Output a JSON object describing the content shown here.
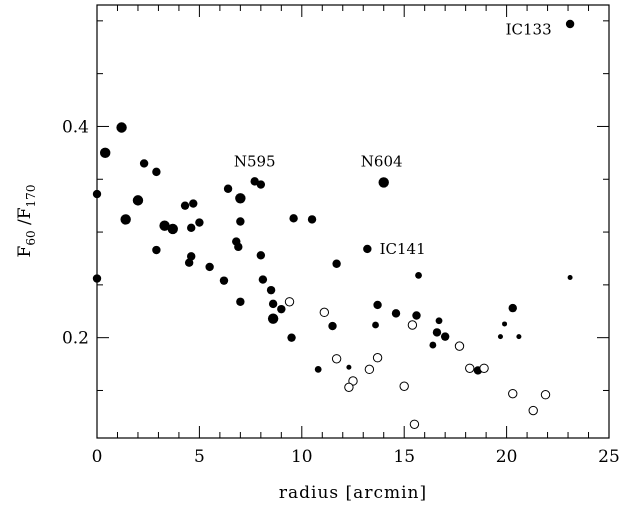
{
  "chart_data": {
    "type": "scatter",
    "xlabel": "radius [arcmin]",
    "ylabel": {
      "base1": "F",
      "sub1": "60",
      "sep": " /",
      "base2": "F",
      "sub2": "170"
    },
    "xlim": [
      0,
      25
    ],
    "ylim": [
      0.105,
      0.515
    ],
    "x_ticks": [
      {
        "value": 0,
        "label": "0"
      },
      {
        "value": 5,
        "label": "5"
      },
      {
        "value": 10,
        "label": "10"
      },
      {
        "value": 15,
        "label": "15"
      },
      {
        "value": 20,
        "label": "20"
      },
      {
        "value": 25,
        "label": "25"
      }
    ],
    "y_ticks": [
      {
        "value": 0.2,
        "label": "0.2"
      },
      {
        "value": 0.4,
        "label": "0.4"
      }
    ],
    "x_minor_step": 1,
    "y_minor_step": 0.05,
    "grid": false,
    "legend": "none",
    "series": [
      {
        "marker": "filled",
        "points": [
          {
            "x": 23.1,
            "y": 0.497,
            "s": "m"
          },
          {
            "x": 1.2,
            "y": 0.399,
            "s": "l"
          },
          {
            "x": 0.4,
            "y": 0.375,
            "s": "l"
          },
          {
            "x": 0.0,
            "y": 0.336,
            "s": "m"
          },
          {
            "x": 0.0,
            "y": 0.256,
            "s": "m"
          },
          {
            "x": 2.3,
            "y": 0.365,
            "s": "m"
          },
          {
            "x": 2.9,
            "y": 0.357,
            "s": "m"
          },
          {
            "x": 2.0,
            "y": 0.33,
            "s": "l"
          },
          {
            "x": 1.4,
            "y": 0.312,
            "s": "l"
          },
          {
            "x": 3.3,
            "y": 0.306,
            "s": "l"
          },
          {
            "x": 3.7,
            "y": 0.303,
            "s": "l"
          },
          {
            "x": 2.9,
            "y": 0.283,
            "s": "m"
          },
          {
            "x": 4.3,
            "y": 0.325,
            "s": "m"
          },
          {
            "x": 4.7,
            "y": 0.327,
            "s": "m"
          },
          {
            "x": 5.0,
            "y": 0.309,
            "s": "m"
          },
          {
            "x": 4.6,
            "y": 0.304,
            "s": "m"
          },
          {
            "x": 4.6,
            "y": 0.277,
            "s": "m"
          },
          {
            "x": 4.5,
            "y": 0.271,
            "s": "m"
          },
          {
            "x": 5.5,
            "y": 0.267,
            "s": "m"
          },
          {
            "x": 6.2,
            "y": 0.254,
            "s": "m"
          },
          {
            "x": 6.4,
            "y": 0.341,
            "s": "m"
          },
          {
            "x": 7.0,
            "y": 0.332,
            "s": "l"
          },
          {
            "x": 7.0,
            "y": 0.31,
            "s": "m"
          },
          {
            "x": 6.8,
            "y": 0.291,
            "s": "m"
          },
          {
            "x": 6.9,
            "y": 0.286,
            "s": "m"
          },
          {
            "x": 7.7,
            "y": 0.348,
            "s": "m"
          },
          {
            "x": 8.0,
            "y": 0.345,
            "s": "m"
          },
          {
            "x": 7.0,
            "y": 0.234,
            "s": "m"
          },
          {
            "x": 8.0,
            "y": 0.278,
            "s": "m"
          },
          {
            "x": 8.1,
            "y": 0.255,
            "s": "m"
          },
          {
            "x": 8.5,
            "y": 0.245,
            "s": "m"
          },
          {
            "x": 8.6,
            "y": 0.232,
            "s": "m"
          },
          {
            "x": 8.6,
            "y": 0.218,
            "s": "l"
          },
          {
            "x": 9.0,
            "y": 0.227,
            "s": "m"
          },
          {
            "x": 9.6,
            "y": 0.313,
            "s": "m"
          },
          {
            "x": 10.5,
            "y": 0.312,
            "s": "m"
          },
          {
            "x": 9.5,
            "y": 0.2,
            "s": "m"
          },
          {
            "x": 11.7,
            "y": 0.27,
            "s": "m"
          },
          {
            "x": 11.5,
            "y": 0.211,
            "s": "m"
          },
          {
            "x": 10.8,
            "y": 0.17,
            "s": "s"
          },
          {
            "x": 12.3,
            "y": 0.172,
            "s": "xs"
          },
          {
            "x": 14.0,
            "y": 0.347,
            "s": "l"
          },
          {
            "x": 13.2,
            "y": 0.284,
            "s": "m"
          },
          {
            "x": 13.7,
            "y": 0.231,
            "s": "m"
          },
          {
            "x": 13.6,
            "y": 0.212,
            "s": "s"
          },
          {
            "x": 14.6,
            "y": 0.223,
            "s": "m"
          },
          {
            "x": 15.6,
            "y": 0.221,
            "s": "m"
          },
          {
            "x": 15.7,
            "y": 0.259,
            "s": "s"
          },
          {
            "x": 16.7,
            "y": 0.216,
            "s": "s"
          },
          {
            "x": 16.6,
            "y": 0.205,
            "s": "m"
          },
          {
            "x": 17.0,
            "y": 0.201,
            "s": "m"
          },
          {
            "x": 16.4,
            "y": 0.193,
            "s": "s"
          },
          {
            "x": 18.6,
            "y": 0.169,
            "s": "m"
          },
          {
            "x": 20.3,
            "y": 0.228,
            "s": "m"
          },
          {
            "x": 19.9,
            "y": 0.213,
            "s": "xs"
          },
          {
            "x": 19.7,
            "y": 0.201,
            "s": "xs"
          },
          {
            "x": 20.6,
            "y": 0.201,
            "s": "xs"
          },
          {
            "x": 23.1,
            "y": 0.257,
            "s": "xs"
          }
        ]
      },
      {
        "marker": "open",
        "points": [
          {
            "x": 9.4,
            "y": 0.234
          },
          {
            "x": 11.1,
            "y": 0.224
          },
          {
            "x": 11.7,
            "y": 0.18
          },
          {
            "x": 13.3,
            "y": 0.17
          },
          {
            "x": 13.7,
            "y": 0.181
          },
          {
            "x": 12.5,
            "y": 0.159
          },
          {
            "x": 12.3,
            "y": 0.153
          },
          {
            "x": 15.4,
            "y": 0.212
          },
          {
            "x": 15.0,
            "y": 0.154
          },
          {
            "x": 15.5,
            "y": 0.118
          },
          {
            "x": 17.7,
            "y": 0.192
          },
          {
            "x": 18.2,
            "y": 0.171
          },
          {
            "x": 18.9,
            "y": 0.171
          },
          {
            "x": 20.3,
            "y": 0.147
          },
          {
            "x": 21.3,
            "y": 0.131
          },
          {
            "x": 21.9,
            "y": 0.146
          }
        ]
      }
    ],
    "annotations": [
      {
        "text": "IC133",
        "x": 22.2,
        "y": 0.487,
        "anchor": "end"
      },
      {
        "text": "N595",
        "x": 7.7,
        "y": 0.362,
        "anchor": "middle"
      },
      {
        "text": "N604",
        "x": 13.9,
        "y": 0.362,
        "anchor": "middle"
      },
      {
        "text": "IC141",
        "x": 13.8,
        "y": 0.279,
        "anchor": "start"
      }
    ]
  }
}
